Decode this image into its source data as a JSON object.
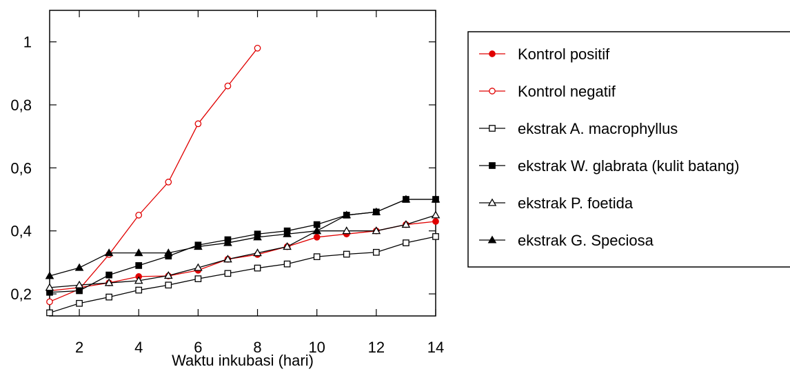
{
  "chart_data": {
    "type": "line",
    "title": "",
    "xlabel": "Waktu inkubasi (hari)",
    "ylabel": "",
    "xlim": [
      1,
      14
    ],
    "ylim": [
      0.13,
      1.1
    ],
    "x_ticks": [
      2,
      4,
      6,
      8,
      10,
      12,
      14
    ],
    "y_ticks": [
      0.2,
      0.4,
      0.6,
      0.8,
      1
    ],
    "y_tick_labels": [
      "0,2",
      "0,4",
      "0,6",
      "0,8",
      "1"
    ],
    "grid": false,
    "legend_position": "right",
    "series": [
      {
        "name": "Kontrol positif",
        "color": "#e00000",
        "marker": "filled-circle",
        "x": [
          1,
          2,
          3,
          4,
          5,
          6,
          7,
          8,
          9,
          10,
          11,
          12,
          13,
          14
        ],
        "y": [
          0.21,
          0.22,
          0.235,
          0.255,
          0.257,
          0.275,
          0.31,
          0.325,
          0.35,
          0.38,
          0.39,
          0.4,
          0.42,
          0.43
        ]
      },
      {
        "name": "Kontrol negatif",
        "color": "#e00000",
        "marker": "open-circle",
        "x": [
          1,
          2,
          3,
          4,
          5,
          6,
          7,
          8
        ],
        "y": [
          0.175,
          0.215,
          0.325,
          0.45,
          0.555,
          0.74,
          0.86,
          0.98
        ]
      },
      {
        "name": "ekstrak A. macrophyllus",
        "color": "#000000",
        "marker": "open-square",
        "x": [
          1,
          2,
          3,
          4,
          5,
          6,
          7,
          8,
          9,
          10,
          11,
          12,
          13,
          14
        ],
        "y": [
          0.14,
          0.17,
          0.19,
          0.212,
          0.228,
          0.248,
          0.265,
          0.282,
          0.295,
          0.318,
          0.326,
          0.332,
          0.362,
          0.382
        ]
      },
      {
        "name": "ekstrak W. glabrata (kulit batang)",
        "color": "#000000",
        "marker": "filled-square",
        "x": [
          1,
          2,
          3,
          4,
          5,
          6,
          7,
          8,
          9,
          10,
          11,
          12,
          13,
          14
        ],
        "y": [
          0.205,
          0.21,
          0.26,
          0.29,
          0.32,
          0.355,
          0.372,
          0.39,
          0.4,
          0.42,
          0.45,
          0.46,
          0.5,
          0.5
        ]
      },
      {
        "name": "ekstrak P. foetida",
        "color": "#000000",
        "marker": "open-triangle",
        "x": [
          1,
          2,
          3,
          4,
          5,
          6,
          7,
          8,
          9,
          10,
          11,
          12,
          13,
          14
        ],
        "y": [
          0.22,
          0.228,
          0.235,
          0.242,
          0.258,
          0.283,
          0.31,
          0.33,
          0.35,
          0.4,
          0.4,
          0.4,
          0.42,
          0.45
        ]
      },
      {
        "name": "ekstrak G. Speciosa",
        "color": "#000000",
        "marker": "filled-triangle",
        "x": [
          1,
          2,
          3,
          4,
          5,
          6,
          7,
          8,
          9,
          10,
          11,
          12,
          13,
          14
        ],
        "y": [
          0.257,
          0.283,
          0.33,
          0.33,
          0.33,
          0.35,
          0.362,
          0.38,
          0.39,
          0.4,
          0.45,
          0.46,
          0.5,
          0.5
        ]
      }
    ]
  }
}
